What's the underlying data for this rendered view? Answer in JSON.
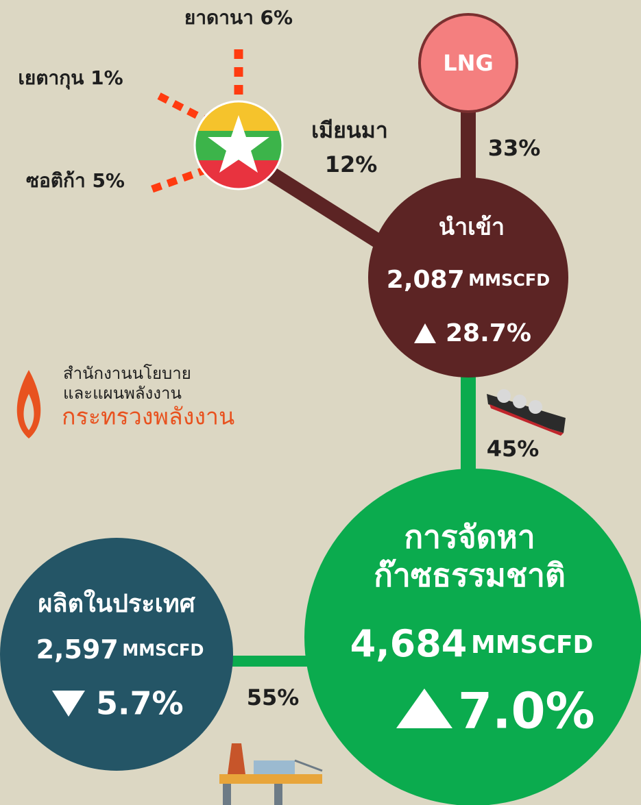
{
  "myanmar_fields": [
    "ยาดานา 6%",
    "เยตากุน 1%",
    "ซอติก้า 5%"
  ],
  "myanmar": {
    "name": "เมียนมา",
    "share": "12%"
  },
  "lng": {
    "name": "LNG",
    "share": "33%"
  },
  "import": {
    "title": "นำเข้า",
    "value": "2,087",
    "unit": "MMSCFD",
    "change": "28.7%",
    "share": "45%"
  },
  "supply": {
    "title": [
      "การจัดหา",
      "ก๊าซธรรมชาติ"
    ],
    "value": "4,684",
    "unit": "MMSCFD",
    "change": "7.0%"
  },
  "domestic": {
    "title": "ผลิตในประเทศ",
    "value": "2,597",
    "unit": "MMSCFD",
    "change": "5.7%",
    "share": "55%"
  },
  "logo": [
    "สำนักงานนโยบาย",
    "และแผนพลังงาน",
    "กระทรวงพลังงาน"
  ]
}
